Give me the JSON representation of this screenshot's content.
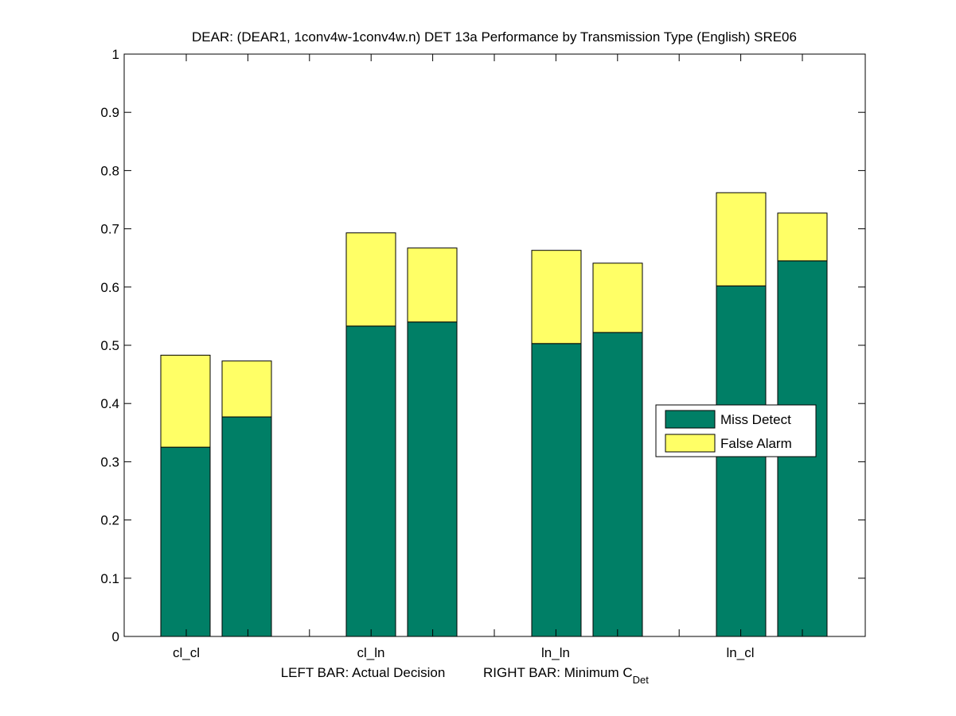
{
  "chart_data": {
    "type": "bar",
    "stacked": true,
    "title": "DEAR: (DEAR1, 1conv4w-1conv4w.n) DET 13a Performance by Transmission Type (English) SRE06",
    "xlabel_left": "LEFT BAR: Actual Decision",
    "xlabel_right": "RIGHT BAR: Minimum C",
    "xlabel_right_subscript": "Det",
    "ylabel": "",
    "ylim": [
      0,
      1
    ],
    "yticks": [
      "0",
      "0.1",
      "0.2",
      "0.3",
      "0.4",
      "0.5",
      "0.6",
      "0.7",
      "0.8",
      "0.9",
      "1"
    ],
    "categories": [
      "cl_cl",
      "cl_ln",
      "ln_ln",
      "ln_cl"
    ],
    "bars_per_category": [
      "Actual Decision",
      "Minimum C_Det"
    ],
    "series": [
      {
        "name": "Miss Detect",
        "color": "#007f66",
        "values": [
          [
            0.325,
            0.377
          ],
          [
            0.533,
            0.54
          ],
          [
            0.503,
            0.522
          ],
          [
            0.602,
            0.645
          ]
        ]
      },
      {
        "name": "False Alarm",
        "color": "#ffff66",
        "values": [
          [
            0.158,
            0.096
          ],
          [
            0.16,
            0.127
          ],
          [
            0.16,
            0.119
          ],
          [
            0.16,
            0.082
          ]
        ]
      }
    ],
    "totals": [
      [
        0.483,
        0.473
      ],
      [
        0.693,
        0.667
      ],
      [
        0.663,
        0.641
      ],
      [
        0.762,
        0.727
      ]
    ],
    "legend": {
      "entries": [
        "Miss Detect",
        "False Alarm"
      ],
      "placement": "center-right"
    },
    "grid": false
  }
}
